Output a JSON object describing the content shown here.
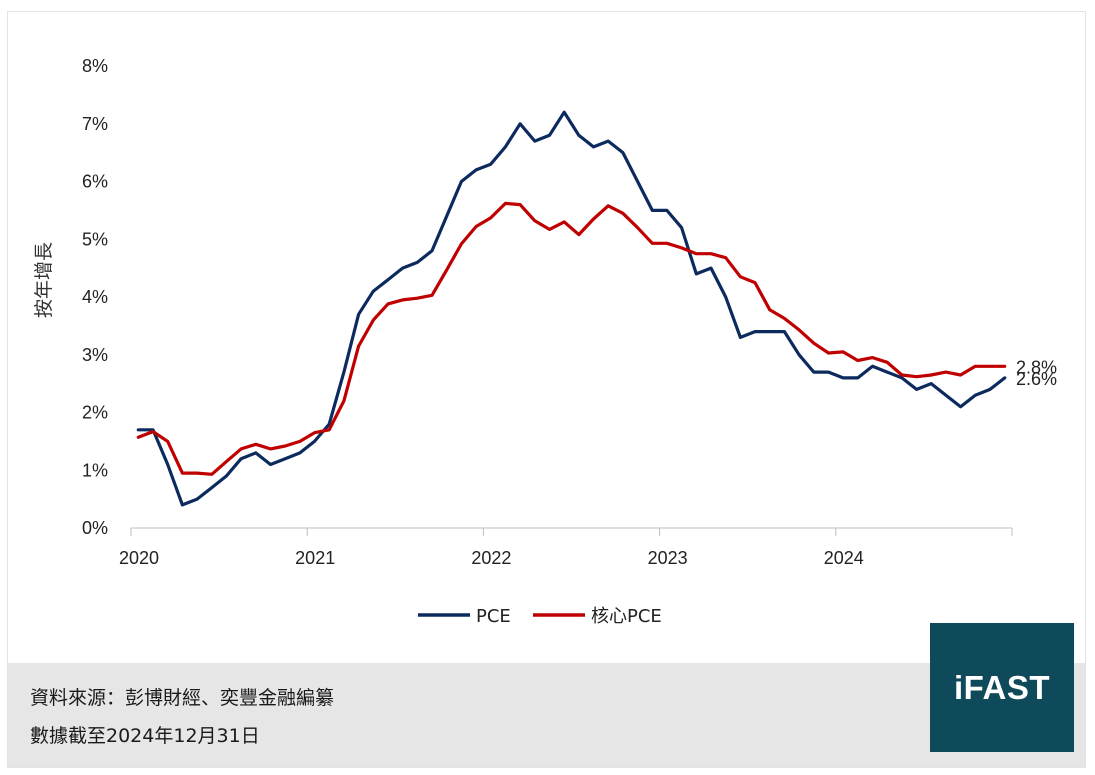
{
  "chart_data": {
    "type": "line",
    "title": "",
    "xlabel": "",
    "ylabel": "按年增長",
    "ylim": [
      0,
      8
    ],
    "yticks": [
      "0%",
      "1%",
      "2%",
      "3%",
      "4%",
      "5%",
      "6%",
      "7%",
      "8%"
    ],
    "xticks": [
      "2020",
      "2021",
      "2022",
      "2023",
      "2024"
    ],
    "x_range": [
      2020,
      2025
    ],
    "series": [
      {
        "name": "PCE",
        "color": "#0c2a5e",
        "end_label": "2.6%",
        "values": [
          1.7,
          1.7,
          1.1,
          0.4,
          0.5,
          0.7,
          0.9,
          1.2,
          1.3,
          1.1,
          1.2,
          1.3,
          1.5,
          1.8,
          2.7,
          3.7,
          4.1,
          4.3,
          4.5,
          4.6,
          4.8,
          5.4,
          6.0,
          6.2,
          6.3,
          6.6,
          7.0,
          6.7,
          6.8,
          7.2,
          6.8,
          6.6,
          6.7,
          6.5,
          6.0,
          5.5,
          5.5,
          5.2,
          4.4,
          4.5,
          4.0,
          3.3,
          3.4,
          3.4,
          3.4,
          3.0,
          2.7,
          2.7,
          2.6,
          2.6,
          2.8,
          2.7,
          2.6,
          2.4,
          2.5,
          2.3,
          2.1,
          2.3,
          2.4,
          2.6
        ]
      },
      {
        "name": "核心PCE",
        "color": "#c00000",
        "end_label": "2.8%",
        "values": [
          1.57,
          1.67,
          1.5,
          0.95,
          0.95,
          0.93,
          1.15,
          1.37,
          1.45,
          1.37,
          1.42,
          1.5,
          1.65,
          1.7,
          2.2,
          3.15,
          3.6,
          3.88,
          3.95,
          3.98,
          4.03,
          4.47,
          4.92,
          5.22,
          5.37,
          5.62,
          5.6,
          5.32,
          5.17,
          5.3,
          5.08,
          5.35,
          5.58,
          5.45,
          5.2,
          4.93,
          4.93,
          4.85,
          4.75,
          4.75,
          4.68,
          4.35,
          4.25,
          3.78,
          3.63,
          3.43,
          3.2,
          3.03,
          3.05,
          2.9,
          2.95,
          2.87,
          2.65,
          2.62,
          2.65,
          2.7,
          2.65,
          2.8,
          2.8,
          2.8
        ]
      }
    ]
  },
  "legend": {
    "pce_label": "PCE",
    "core_label": "核心PCE"
  },
  "footer": {
    "source": "資料來源：彭博財經、奕豐金融編纂",
    "date": "數據截至2024年12月31日"
  },
  "logo": {
    "text": "iFAST",
    "bg_color": "#0e4a5a"
  }
}
